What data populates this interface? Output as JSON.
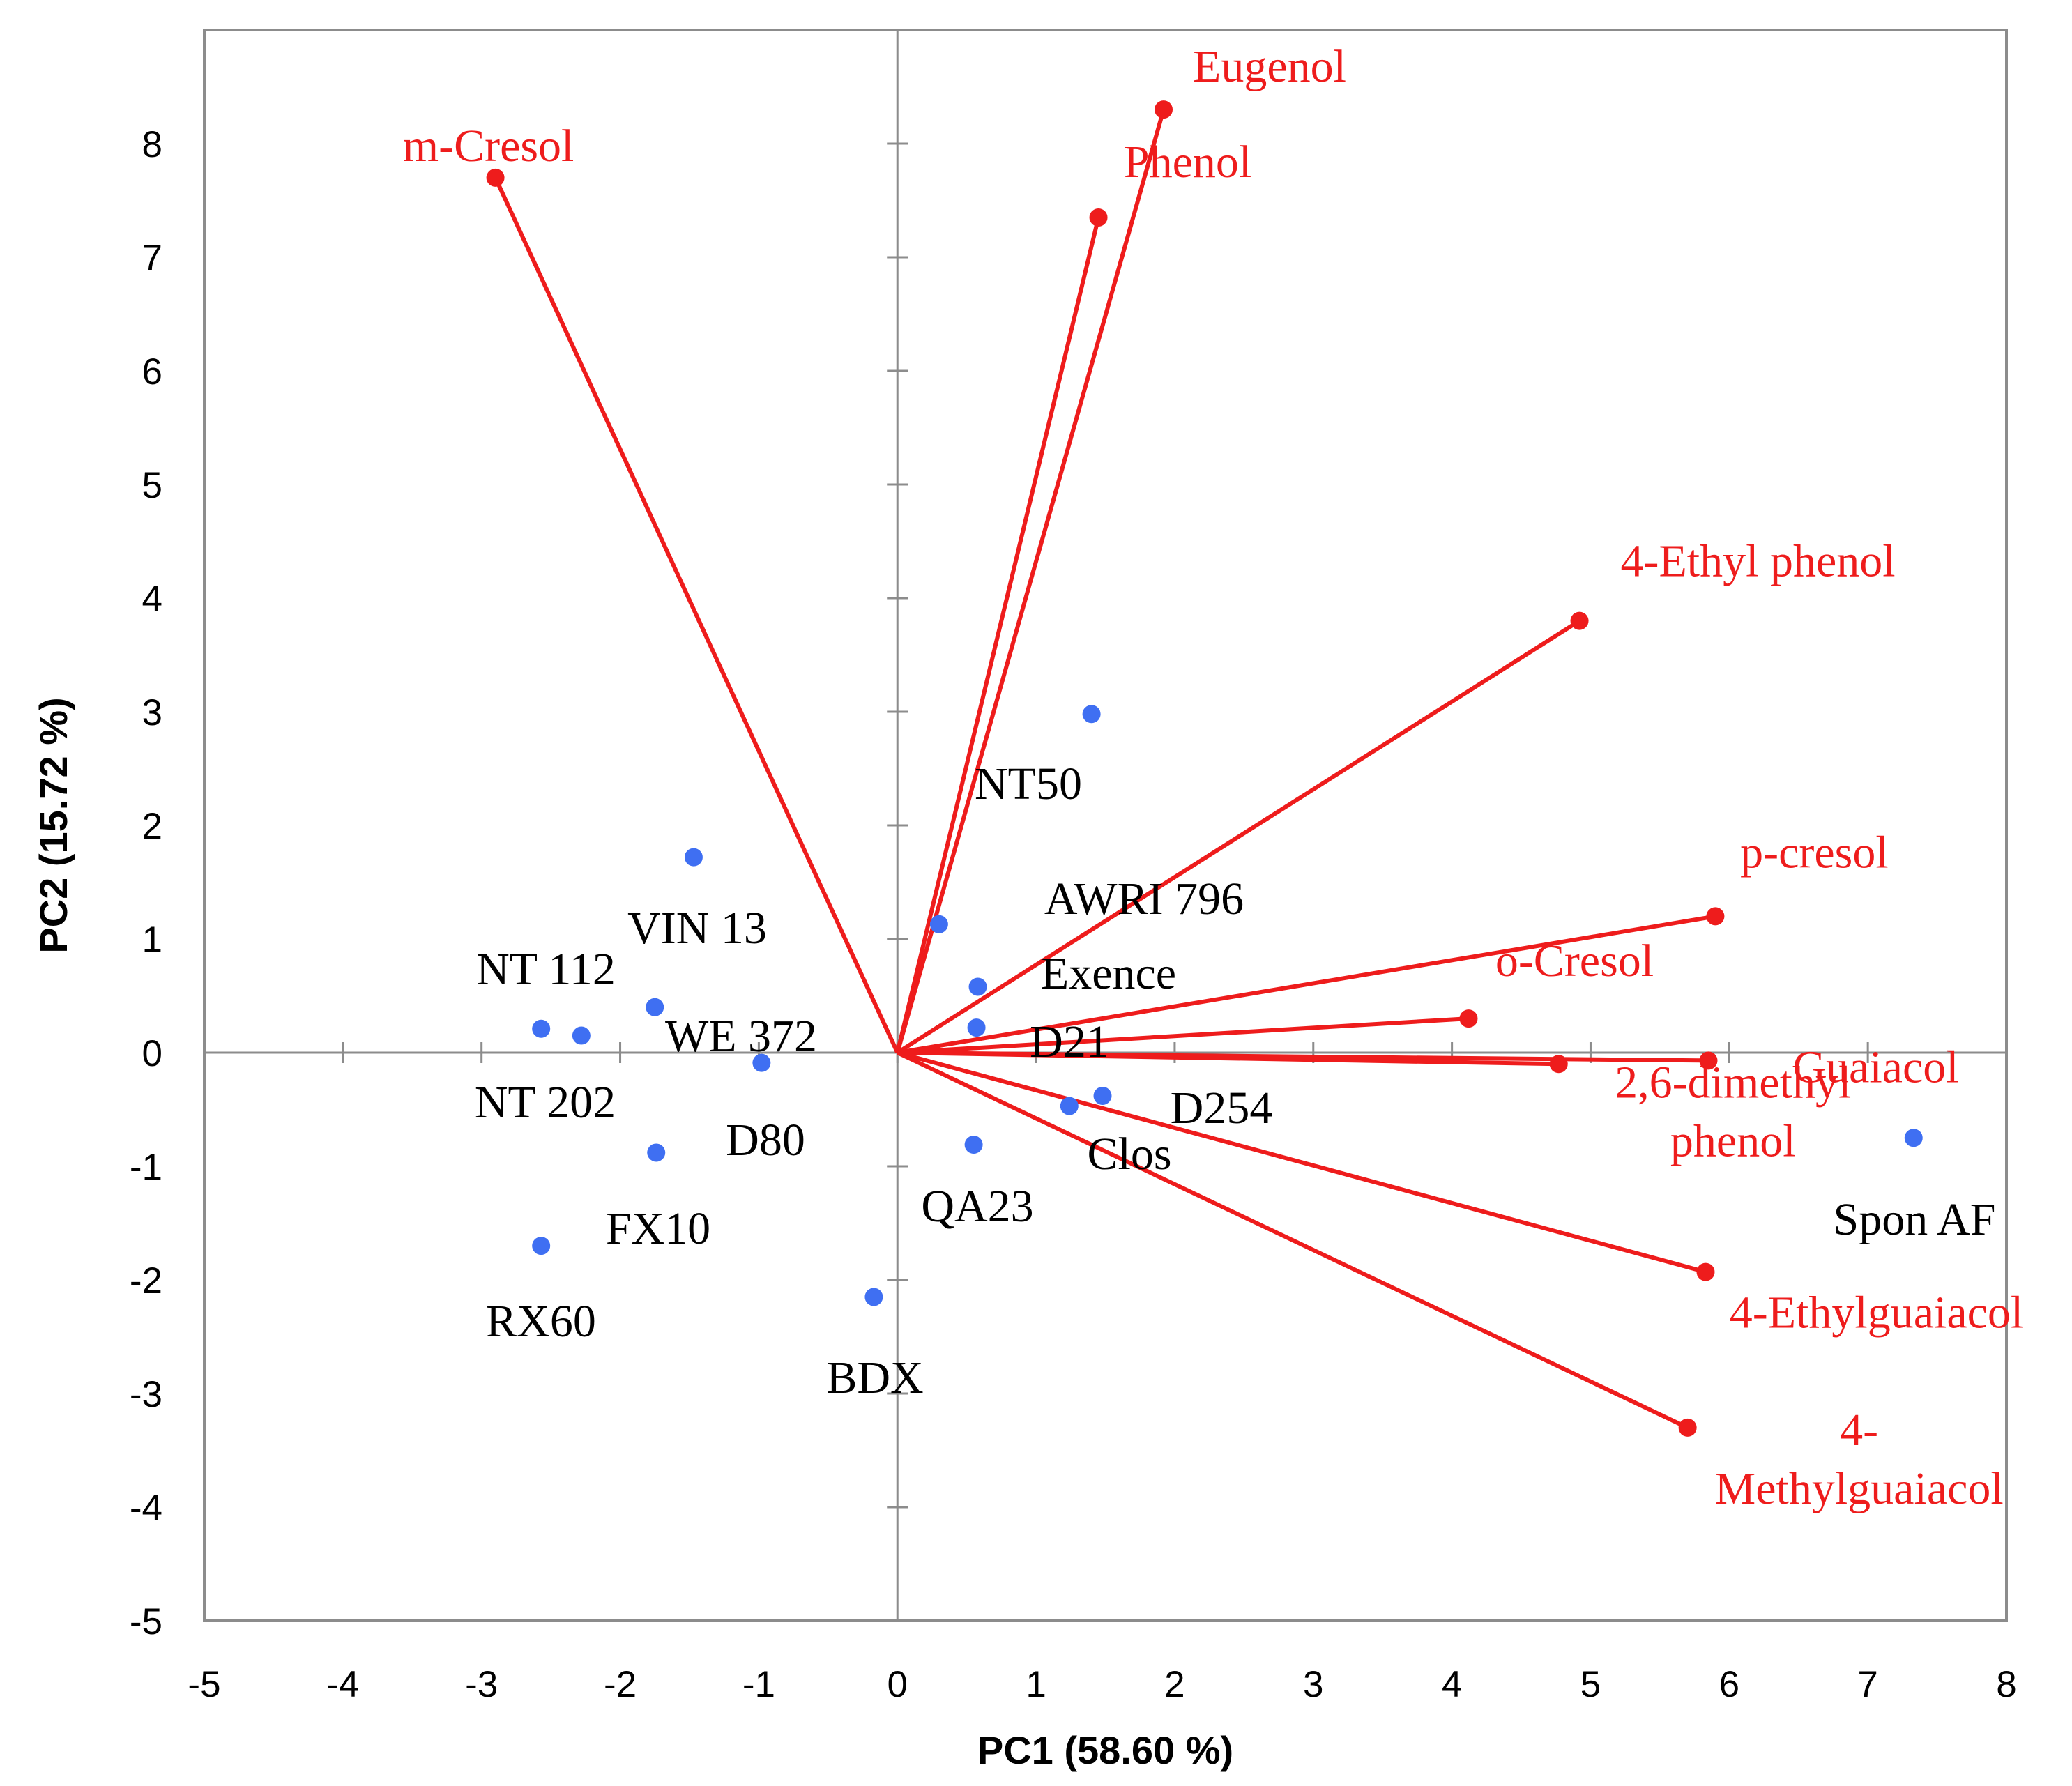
{
  "chart_data": {
    "type": "scatter",
    "subtype": "pca-biplot",
    "xlabel": "PC1 (58.60 %)",
    "ylabel": "PC2 (15.72 %)",
    "xlim": [
      -5,
      8
    ],
    "ylim": [
      -5,
      9
    ],
    "x_ticks": [
      -5,
      -4,
      -3,
      -2,
      -1,
      0,
      1,
      2,
      3,
      4,
      5,
      6,
      7,
      8
    ],
    "y_ticks": [
      -5,
      -4,
      -3,
      -2,
      -1,
      0,
      1,
      2,
      3,
      4,
      5,
      6,
      7,
      8
    ],
    "grid": false,
    "colors": {
      "vectors": "#ee1c1c",
      "samples": "#3f6ff2",
      "axis": "#8c8c8c",
      "sample_text": "#000000"
    },
    "loadings": [
      {
        "name": "m-Cresol",
        "x": -2.9,
        "y": 7.7
      },
      {
        "name": "Eugenol",
        "x": 1.92,
        "y": 8.3
      },
      {
        "name": "Phenol",
        "x": 1.45,
        "y": 7.35
      },
      {
        "name": "4-Ethyl phenol",
        "x": 4.92,
        "y": 3.8
      },
      {
        "name": "p-cresol",
        "x": 5.9,
        "y": 1.2
      },
      {
        "name": "o-Cresol",
        "x": 4.12,
        "y": 0.3
      },
      {
        "name": "Guaiacol",
        "x": 5.85,
        "y": -0.07
      },
      {
        "name": "2,6-dimethyl phenol",
        "label_lines": [
          "2,6-dimethyl",
          "phenol"
        ],
        "x": 4.77,
        "y": -0.1
      },
      {
        "name": "4-Ethylguaiacol",
        "x": 5.83,
        "y": -1.93
      },
      {
        "name": "4-Methylguaiacol",
        "label_lines": [
          "4-",
          "Methylguaiacol"
        ],
        "x": 5.7,
        "y": -3.3
      }
    ],
    "samples": [
      {
        "name": "NT50",
        "x": 1.4,
        "y": 2.98
      },
      {
        "name": "VIN 13",
        "x": -1.47,
        "y": 1.72
      },
      {
        "name": "AWRI 796",
        "x": 0.3,
        "y": 1.13
      },
      {
        "name": "Exence",
        "x": 0.58,
        "y": 0.58
      },
      {
        "name": "D21",
        "x": 0.57,
        "y": 0.22
      },
      {
        "name": "WE 372",
        "x": -1.75,
        "y": 0.4
      },
      {
        "name": "NT 112",
        "x": -2.28,
        "y": 0.15
      },
      {
        "name": "NT 202",
        "x": -2.57,
        "y": 0.21
      },
      {
        "name": "D80",
        "x": -0.98,
        "y": -0.09
      },
      {
        "name": "D254",
        "x": 1.48,
        "y": -0.38
      },
      {
        "name": "Clos",
        "x": 1.24,
        "y": -0.47
      },
      {
        "name": "QA23",
        "x": 0.55,
        "y": -0.81
      },
      {
        "name": "FX10",
        "x": -1.74,
        "y": -0.88
      },
      {
        "name": "RX60",
        "x": -2.57,
        "y": -1.7
      },
      {
        "name": "BDX",
        "x": -0.17,
        "y": -2.15
      },
      {
        "name": "Spon AF",
        "x": 7.33,
        "y": -0.75
      }
    ]
  }
}
